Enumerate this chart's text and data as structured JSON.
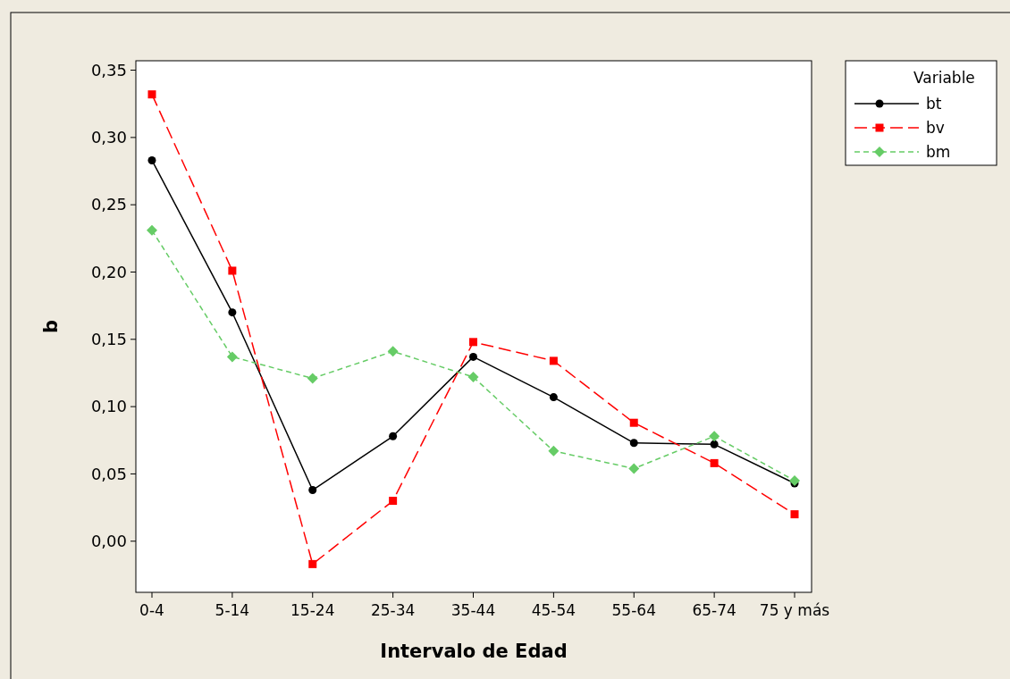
{
  "chart_data": {
    "type": "line",
    "xlabel": "Intervalo de Edad",
    "ylabel": "b",
    "legend_title": "Variable",
    "legend": "top right",
    "grid": false,
    "categories": [
      "0-4",
      "5-14",
      "15-24",
      "25-34",
      "35-44",
      "45-54",
      "55-64",
      "65-74",
      "75 y más"
    ],
    "ylim": [
      -0.038,
      0.357
    ],
    "yticks": [
      {
        "value": 0,
        "label": "0,00"
      },
      {
        "value": 0.05,
        "label": "0,05"
      },
      {
        "value": 0.1,
        "label": "0,10"
      },
      {
        "value": 0.15,
        "label": "0,15"
      },
      {
        "value": 0.2,
        "label": "0,20"
      },
      {
        "value": 0.25,
        "label": "0,25"
      },
      {
        "value": 0.3,
        "label": "0,30"
      },
      {
        "value": 0.35,
        "label": "0,35"
      }
    ],
    "series": [
      {
        "name": "bt",
        "color": "#000000",
        "marker": "circle",
        "line_style": "solid",
        "values": [
          0.283,
          0.17,
          0.038,
          0.078,
          0.137,
          0.107,
          0.073,
          0.072,
          0.043
        ]
      },
      {
        "name": "bv",
        "color": "#ff0000",
        "marker": "square",
        "line_style": "dashed",
        "values": [
          0.332,
          0.201,
          -0.017,
          0.03,
          0.148,
          0.134,
          0.088,
          0.058,
          0.02
        ]
      },
      {
        "name": "bm",
        "color": "#66cc66",
        "marker": "diamond",
        "line_style": "dotted",
        "values": [
          0.231,
          0.137,
          0.121,
          0.141,
          0.122,
          0.067,
          0.054,
          0.078,
          0.045
        ]
      }
    ]
  }
}
